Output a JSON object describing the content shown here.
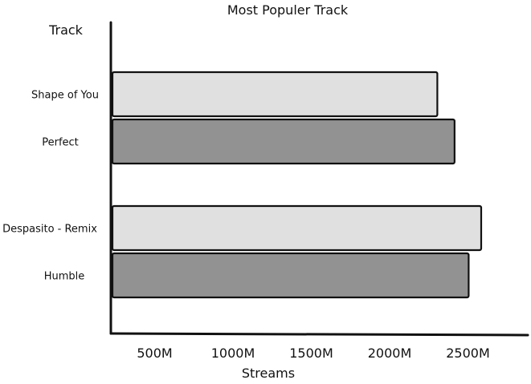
{
  "chart_data": {
    "type": "bar",
    "orientation": "horizontal",
    "title": "Most Populer Track",
    "ylabel": "Track",
    "xlabel": "Streams",
    "x_ticks": [
      "500M",
      "1000M",
      "1500M",
      "2000M",
      "2500M"
    ],
    "x_tick_values": [
      500,
      1000,
      1500,
      2000,
      2500
    ],
    "unit": "M",
    "grid": false,
    "categories": [
      "Shape of You",
      "Perfect",
      "Despasito - Remix",
      "Humble"
    ],
    "values": [
      2520,
      2630,
      2800,
      2720
    ],
    "colors": [
      "#e0e0e0",
      "#929292",
      "#e0e0e0",
      "#929292"
    ]
  }
}
